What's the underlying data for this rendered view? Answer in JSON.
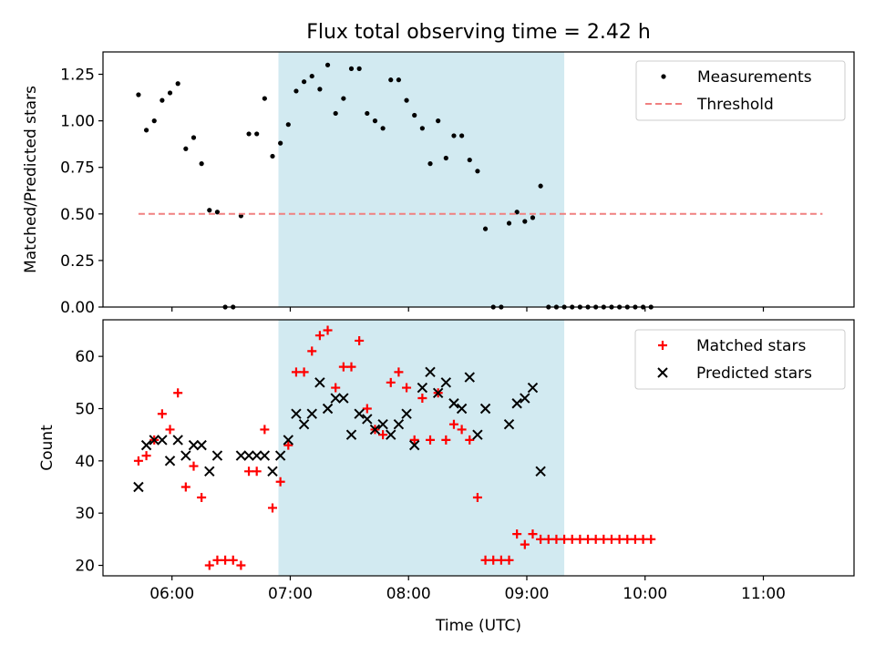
{
  "chart_data": [
    {
      "type": "scatter",
      "title": "Flux total observing time = 2.42 h",
      "xlabel": "",
      "ylabel": "Matched/Predicted stars",
      "ylim": [
        0,
        1.37
      ],
      "yticks": [
        0.0,
        0.25,
        0.5,
        0.75,
        1.0,
        1.25
      ],
      "ytick_labels": [
        "0.00",
        "0.25",
        "0.50",
        "0.75",
        "1.00",
        "1.25"
      ],
      "xlim": [
        "05:25",
        "11:46"
      ],
      "xticks": [
        "06:00",
        "07:00",
        "08:00",
        "09:00",
        "10:00",
        "11:00"
      ],
      "shaded_span": {
        "start": "06:54",
        "end": "09:19",
        "color": "#add8e6"
      },
      "legend_position": "upper right",
      "series": [
        {
          "name": "Measurements",
          "marker": "dot",
          "color": "#000000",
          "points": [
            [
              "05:43",
              1.14
            ],
            [
              "05:47",
              0.95
            ],
            [
              "05:51",
              1.0
            ],
            [
              "05:55",
              1.11
            ],
            [
              "05:59",
              1.15
            ],
            [
              "06:03",
              1.2
            ],
            [
              "06:07",
              0.85
            ],
            [
              "06:11",
              0.91
            ],
            [
              "06:15",
              0.77
            ],
            [
              "06:19",
              0.52
            ],
            [
              "06:23",
              0.51
            ],
            [
              "06:27",
              0.0
            ],
            [
              "06:31",
              0.0
            ],
            [
              "06:35",
              0.49
            ],
            [
              "06:39",
              0.93
            ],
            [
              "06:43",
              0.93
            ],
            [
              "06:47",
              1.12
            ],
            [
              "06:51",
              0.81
            ],
            [
              "06:55",
              0.88
            ],
            [
              "06:59",
              0.98
            ],
            [
              "07:03",
              1.16
            ],
            [
              "07:07",
              1.21
            ],
            [
              "07:11",
              1.24
            ],
            [
              "07:15",
              1.17
            ],
            [
              "07:19",
              1.3
            ],
            [
              "07:23",
              1.04
            ],
            [
              "07:27",
              1.12
            ],
            [
              "07:31",
              1.28
            ],
            [
              "07:35",
              1.28
            ],
            [
              "07:39",
              1.04
            ],
            [
              "07:43",
              1.0
            ],
            [
              "07:47",
              0.96
            ],
            [
              "07:51",
              1.22
            ],
            [
              "07:55",
              1.22
            ],
            [
              "07:59",
              1.11
            ],
            [
              "08:03",
              1.03
            ],
            [
              "08:07",
              0.96
            ],
            [
              "08:11",
              0.77
            ],
            [
              "08:15",
              1.0
            ],
            [
              "08:19",
              0.8
            ],
            [
              "08:23",
              0.92
            ],
            [
              "08:27",
              0.92
            ],
            [
              "08:31",
              0.79
            ],
            [
              "08:35",
              0.73
            ],
            [
              "08:39",
              0.42
            ],
            [
              "08:43",
              0.0
            ],
            [
              "08:47",
              0.0
            ],
            [
              "08:51",
              0.45
            ],
            [
              "08:55",
              0.51
            ],
            [
              "08:59",
              0.46
            ],
            [
              "09:03",
              0.48
            ],
            [
              "09:07",
              0.65
            ],
            [
              "09:11",
              0.0
            ],
            [
              "09:15",
              0.0
            ],
            [
              "09:19",
              0.0
            ],
            [
              "09:23",
              0.0
            ],
            [
              "09:27",
              0.0
            ],
            [
              "09:31",
              0.0
            ],
            [
              "09:35",
              0.0
            ],
            [
              "09:39",
              0.0
            ],
            [
              "09:43",
              0.0
            ],
            [
              "09:47",
              0.0
            ],
            [
              "09:51",
              0.0
            ],
            [
              "09:55",
              0.0
            ],
            [
              "09:59",
              0.0
            ],
            [
              "10:03",
              0.0
            ]
          ]
        },
        {
          "name": "Threshold",
          "marker": "dashed-line",
          "color": "#f08080",
          "points": [
            [
              "05:43",
              0.5
            ],
            [
              "11:30",
              0.5
            ]
          ]
        }
      ]
    },
    {
      "type": "scatter",
      "title": "",
      "xlabel": "Time (UTC)",
      "ylabel": "Count",
      "ylim": [
        18,
        67
      ],
      "yticks": [
        20,
        30,
        40,
        50,
        60
      ],
      "ytick_labels": [
        "20",
        "30",
        "40",
        "50",
        "60"
      ],
      "xlim": [
        "05:25",
        "11:46"
      ],
      "xticks": [
        "06:00",
        "07:00",
        "08:00",
        "09:00",
        "10:00",
        "11:00"
      ],
      "xtick_labels": [
        "06:00",
        "07:00",
        "08:00",
        "09:00",
        "10:00",
        "11:00"
      ],
      "shaded_span": {
        "start": "06:54",
        "end": "09:19",
        "color": "#add8e6"
      },
      "legend_position": "upper right",
      "series": [
        {
          "name": "Matched stars",
          "marker": "plus",
          "color": "#ff0000",
          "points": [
            [
              "05:43",
              40
            ],
            [
              "05:47",
              41
            ],
            [
              "05:51",
              44
            ],
            [
              "05:55",
              49
            ],
            [
              "05:59",
              46
            ],
            [
              "06:03",
              53
            ],
            [
              "06:07",
              35
            ],
            [
              "06:11",
              39
            ],
            [
              "06:15",
              33
            ],
            [
              "06:19",
              20
            ],
            [
              "06:23",
              21
            ],
            [
              "06:27",
              21
            ],
            [
              "06:31",
              21
            ],
            [
              "06:35",
              20
            ],
            [
              "06:39",
              38
            ],
            [
              "06:43",
              38
            ],
            [
              "06:47",
              46
            ],
            [
              "06:51",
              31
            ],
            [
              "06:55",
              36
            ],
            [
              "06:59",
              43
            ],
            [
              "07:03",
              57
            ],
            [
              "07:07",
              57
            ],
            [
              "07:11",
              61
            ],
            [
              "07:15",
              64
            ],
            [
              "07:19",
              65
            ],
            [
              "07:23",
              54
            ],
            [
              "07:27",
              58
            ],
            [
              "07:31",
              58
            ],
            [
              "07:35",
              63
            ],
            [
              "07:39",
              50
            ],
            [
              "07:43",
              46
            ],
            [
              "07:47",
              45
            ],
            [
              "07:51",
              55
            ],
            [
              "07:55",
              57
            ],
            [
              "07:59",
              54
            ],
            [
              "08:03",
              44
            ],
            [
              "08:07",
              52
            ],
            [
              "08:11",
              44
            ],
            [
              "08:15",
              53
            ],
            [
              "08:19",
              44
            ],
            [
              "08:23",
              47
            ],
            [
              "08:27",
              46
            ],
            [
              "08:31",
              44
            ],
            [
              "08:35",
              33
            ],
            [
              "08:39",
              21
            ],
            [
              "08:43",
              21
            ],
            [
              "08:47",
              21
            ],
            [
              "08:51",
              21
            ],
            [
              "08:55",
              26
            ],
            [
              "08:59",
              24
            ],
            [
              "09:03",
              26
            ],
            [
              "09:07",
              25
            ],
            [
              "09:11",
              25
            ],
            [
              "09:15",
              25
            ],
            [
              "09:19",
              25
            ],
            [
              "09:23",
              25
            ],
            [
              "09:27",
              25
            ],
            [
              "09:31",
              25
            ],
            [
              "09:35",
              25
            ],
            [
              "09:39",
              25
            ],
            [
              "09:43",
              25
            ],
            [
              "09:47",
              25
            ],
            [
              "09:51",
              25
            ],
            [
              "09:55",
              25
            ],
            [
              "09:59",
              25
            ],
            [
              "10:03",
              25
            ]
          ]
        },
        {
          "name": "Predicted stars",
          "marker": "x",
          "color": "#000000",
          "points": [
            [
              "05:43",
              35
            ],
            [
              "05:47",
              43
            ],
            [
              "05:51",
              44
            ],
            [
              "05:55",
              44
            ],
            [
              "05:59",
              40
            ],
            [
              "06:03",
              44
            ],
            [
              "06:07",
              41
            ],
            [
              "06:11",
              43
            ],
            [
              "06:15",
              43
            ],
            [
              "06:19",
              38
            ],
            [
              "06:23",
              41
            ],
            [
              "06:35",
              41
            ],
            [
              "06:39",
              41
            ],
            [
              "06:43",
              41
            ],
            [
              "06:47",
              41
            ],
            [
              "06:51",
              38
            ],
            [
              "06:55",
              41
            ],
            [
              "06:59",
              44
            ],
            [
              "07:03",
              49
            ],
            [
              "07:07",
              47
            ],
            [
              "07:11",
              49
            ],
            [
              "07:15",
              55
            ],
            [
              "07:19",
              50
            ],
            [
              "07:23",
              52
            ],
            [
              "07:27",
              52
            ],
            [
              "07:31",
              45
            ],
            [
              "07:35",
              49
            ],
            [
              "07:39",
              48
            ],
            [
              "07:43",
              46
            ],
            [
              "07:47",
              47
            ],
            [
              "07:51",
              45
            ],
            [
              "07:55",
              47
            ],
            [
              "07:59",
              49
            ],
            [
              "08:03",
              43
            ],
            [
              "08:07",
              54
            ],
            [
              "08:11",
              57
            ],
            [
              "08:15",
              53
            ],
            [
              "08:19",
              55
            ],
            [
              "08:23",
              51
            ],
            [
              "08:27",
              50
            ],
            [
              "08:31",
              56
            ],
            [
              "08:35",
              45
            ],
            [
              "08:39",
              50
            ],
            [
              "08:51",
              47
            ],
            [
              "08:55",
              51
            ],
            [
              "08:59",
              52
            ],
            [
              "09:03",
              54
            ],
            [
              "09:07",
              38
            ]
          ]
        }
      ]
    }
  ]
}
